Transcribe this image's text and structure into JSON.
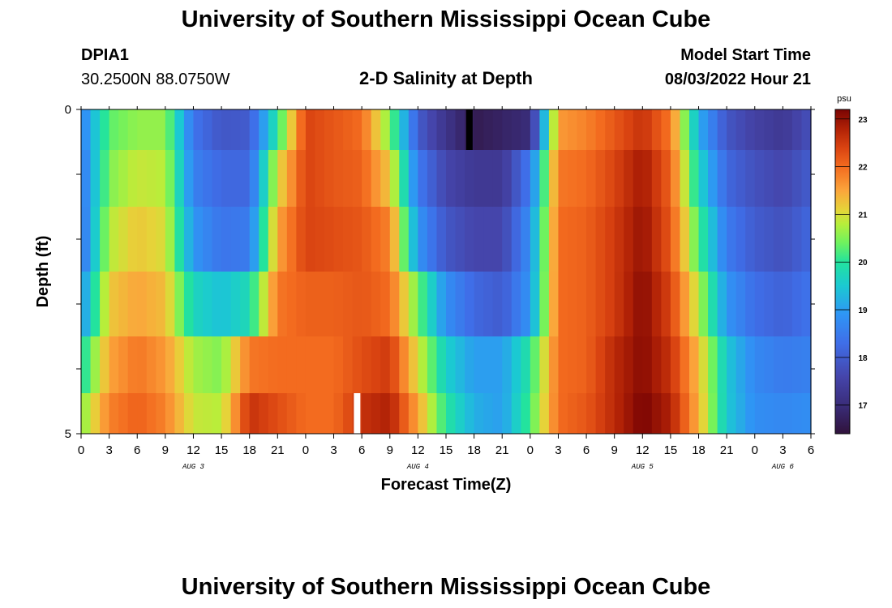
{
  "header": {
    "title": "University of Southern Mississippi Ocean Cube",
    "station": "DPIA1",
    "coords": "30.2500N  88.0750W",
    "chart_title": "2-D Salinity at Depth",
    "model_label": "Model Start Time",
    "model_time": "08/03/2022 Hour 21"
  },
  "footer": {
    "title": "University of Southern Mississippi Ocean Cube"
  },
  "chart_data": {
    "type": "heatmap",
    "title": "2-D Salinity at Depth",
    "xlabel": "Forecast Time(Z)",
    "ylabel": "Depth (ft)",
    "x_tick_labels": [
      "0",
      "3",
      "6",
      "9",
      "12",
      "15",
      "18",
      "21",
      "0",
      "3",
      "6",
      "9",
      "12",
      "15",
      "18",
      "21",
      "0",
      "3",
      "6",
      "9",
      "12",
      "15",
      "18",
      "21",
      "0",
      "3",
      "6"
    ],
    "day_labels": [
      {
        "label": "AUG 3",
        "hour": 12
      },
      {
        "label": "AUG 4",
        "hour": 36
      },
      {
        "label": "AUG 5",
        "hour": 60
      },
      {
        "label": "AUG 6",
        "hour": 75
      }
    ],
    "x_range_hours": [
      0,
      78
    ],
    "y_tick_labels": [
      "0",
      "5"
    ],
    "y_range_ft": [
      0,
      5
    ],
    "depth_rows_ft": [
      0.25,
      1,
      2,
      3,
      4,
      4.75
    ],
    "colorbar": {
      "unit": "psu",
      "range": [
        16.4,
        23.2
      ],
      "ticks": [
        17,
        18,
        19,
        20,
        21,
        22,
        23
      ],
      "stops": [
        {
          "v": 16.4,
          "c": "#30123b"
        },
        {
          "v": 17.0,
          "c": "#3a2d7a"
        },
        {
          "v": 17.6,
          "c": "#4545ab"
        },
        {
          "v": 18.3,
          "c": "#3f6ee8"
        },
        {
          "v": 18.9,
          "c": "#2f95f5"
        },
        {
          "v": 19.5,
          "c": "#1bc9d2"
        },
        {
          "v": 20.0,
          "c": "#23e39e"
        },
        {
          "v": 20.4,
          "c": "#6ef25f"
        },
        {
          "v": 20.8,
          "c": "#b7ee3a"
        },
        {
          "v": 21.1,
          "c": "#e6d339"
        },
        {
          "v": 21.5,
          "c": "#fba53b"
        },
        {
          "v": 22.0,
          "c": "#f36b1f"
        },
        {
          "v": 22.4,
          "c": "#d94311"
        },
        {
          "v": 22.8,
          "c": "#b02106"
        },
        {
          "v": 23.2,
          "c": "#7a0403"
        }
      ]
    },
    "series": [
      {
        "depth_ft": 0.25,
        "key_hours": [
          0,
          3,
          6,
          9,
          12,
          15,
          18,
          21,
          24,
          27,
          30,
          33,
          36,
          39,
          42,
          45,
          48,
          51,
          54,
          57,
          60,
          63,
          66,
          69,
          72,
          75,
          78
        ],
        "values": [
          18.6,
          20.3,
          20.6,
          20.6,
          18.4,
          17.9,
          18.0,
          20.0,
          22.4,
          22.2,
          22.0,
          20.5,
          18.0,
          17.2,
          16.6,
          16.8,
          17.0,
          21.6,
          21.8,
          22.2,
          22.6,
          21.9,
          19.2,
          17.9,
          17.5,
          17.3,
          17.8
        ]
      },
      {
        "depth_ft": 1,
        "key_hours": [
          0,
          3,
          6,
          9,
          12,
          15,
          18,
          21,
          24,
          27,
          30,
          33,
          36,
          39,
          42,
          45,
          48,
          51,
          54,
          57,
          60,
          63,
          66,
          69,
          72,
          75,
          78
        ],
        "values": [
          18.4,
          20.5,
          20.9,
          20.8,
          18.6,
          18.2,
          18.2,
          21.0,
          22.4,
          22.2,
          22.1,
          21.2,
          18.5,
          17.6,
          17.3,
          17.3,
          18.5,
          21.9,
          22.0,
          22.4,
          22.9,
          22.1,
          19.7,
          18.2,
          17.8,
          17.6,
          18.0
        ]
      },
      {
        "depth_ft": 2,
        "key_hours": [
          0,
          3,
          6,
          9,
          12,
          15,
          18,
          21,
          24,
          27,
          30,
          33,
          36,
          39,
          42,
          45,
          48,
          51,
          54,
          57,
          60,
          63,
          66,
          69,
          72,
          75,
          78
        ],
        "values": [
          18.3,
          20.8,
          21.2,
          21.0,
          18.9,
          18.4,
          18.5,
          21.5,
          22.4,
          22.3,
          22.2,
          21.8,
          18.9,
          17.9,
          17.6,
          17.6,
          18.8,
          22.0,
          22.1,
          22.5,
          23.0,
          22.2,
          20.2,
          18.5,
          18.0,
          17.8,
          18.2
        ]
      },
      {
        "depth_ft": 3,
        "key_hours": [
          0,
          3,
          6,
          9,
          12,
          15,
          18,
          21,
          24,
          27,
          30,
          33,
          36,
          39,
          42,
          45,
          48,
          51,
          54,
          57,
          60,
          63,
          66,
          69,
          72,
          75,
          78
        ],
        "values": [
          18.8,
          21.2,
          21.5,
          21.3,
          19.7,
          19.4,
          19.8,
          21.9,
          22.1,
          22.1,
          22.2,
          22.0,
          20.4,
          18.8,
          18.2,
          18.0,
          18.9,
          22.0,
          22.1,
          22.5,
          23.1,
          22.4,
          20.8,
          18.9,
          18.3,
          18.1,
          18.4
        ]
      },
      {
        "depth_ft": 4,
        "key_hours": [
          0,
          3,
          6,
          9,
          12,
          15,
          18,
          21,
          24,
          27,
          30,
          33,
          36,
          39,
          42,
          45,
          48,
          51,
          54,
          57,
          60,
          63,
          66,
          69,
          72,
          75,
          78
        ],
        "values": [
          19.8,
          21.5,
          21.9,
          21.6,
          20.7,
          20.5,
          21.9,
          22.0,
          22.0,
          22.0,
          22.3,
          22.5,
          21.0,
          19.6,
          19.0,
          19.0,
          20.0,
          22.0,
          22.1,
          22.7,
          23.1,
          22.6,
          21.3,
          19.5,
          18.7,
          18.5,
          18.6
        ]
      },
      {
        "depth_ft": 4.75,
        "key_hours": [
          0,
          3,
          6,
          9,
          12,
          15,
          18,
          21,
          24,
          27,
          30,
          33,
          36,
          39,
          42,
          45,
          48,
          51,
          54,
          57,
          60,
          63,
          66,
          69,
          72,
          75,
          78
        ],
        "values": [
          20.5,
          21.8,
          22.1,
          21.8,
          20.9,
          20.8,
          22.6,
          22.3,
          22.0,
          22.0,
          22.6,
          22.8,
          21.5,
          20.0,
          19.2,
          19.0,
          20.2,
          22.0,
          22.2,
          22.7,
          23.2,
          22.8,
          21.4,
          19.5,
          18.8,
          18.7,
          18.8
        ]
      }
    ],
    "missing_cells": [
      {
        "row": 0,
        "hour": 41.5,
        "color": "#000000"
      },
      {
        "row": 5,
        "hour": 29.5,
        "color": "#ffffff"
      }
    ]
  }
}
